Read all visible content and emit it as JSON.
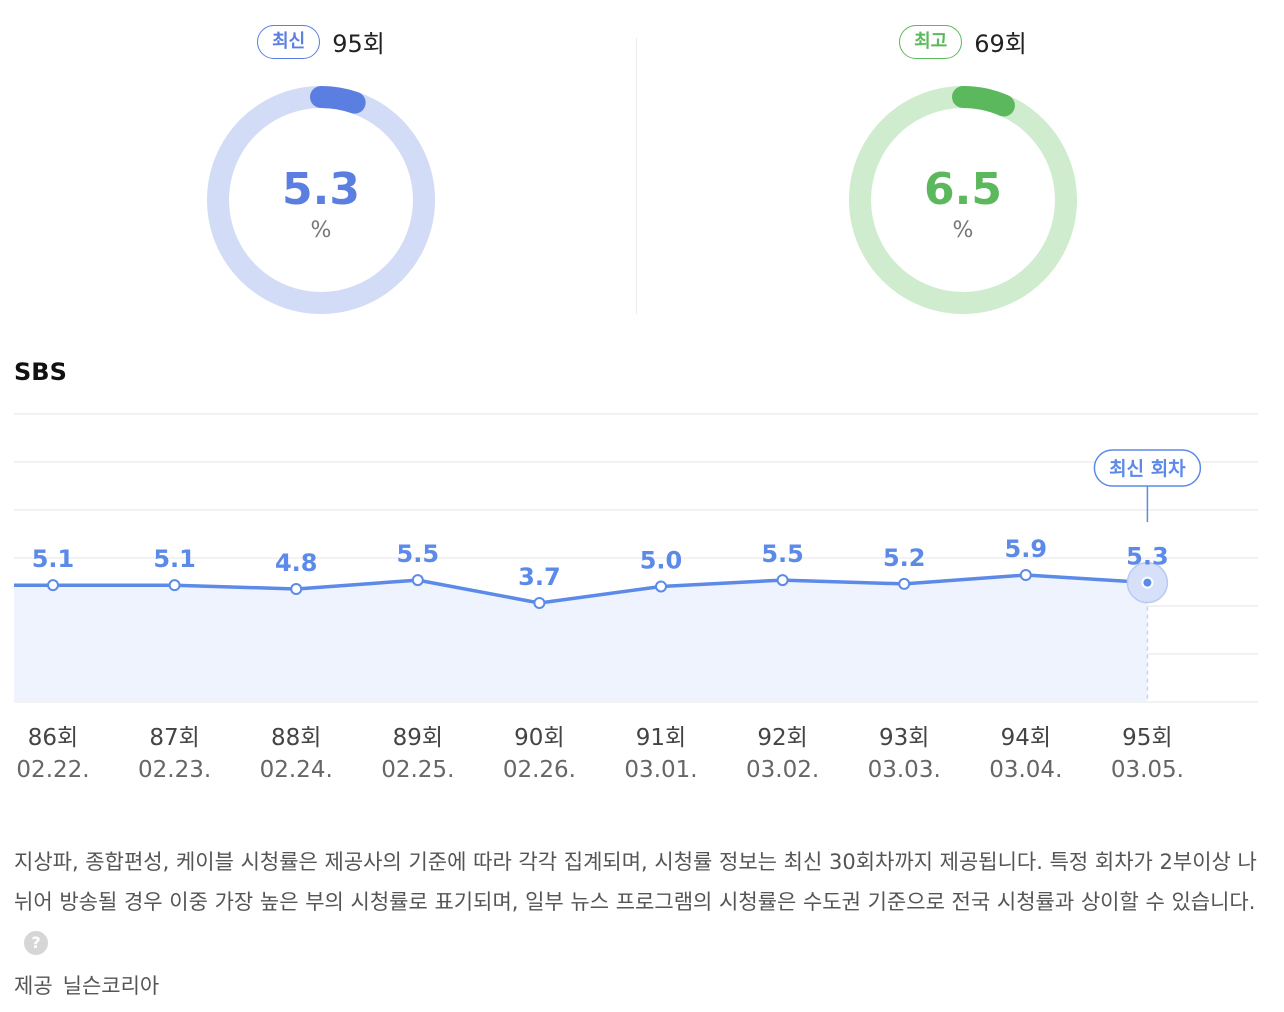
{
  "latest": {
    "badge": "최신",
    "episode": "95회",
    "value": "5.3",
    "unit": "%",
    "ratio": 0.053,
    "color": "#5b7fe0",
    "track_color": "#d3dcf6"
  },
  "best": {
    "badge": "최고",
    "episode": "69회",
    "value": "6.5",
    "unit": "%",
    "ratio": 0.065,
    "color": "#5cb85c",
    "track_color": "#cfeccf"
  },
  "chart_title": "SBS",
  "chart_data": {
    "type": "line",
    "categories": [
      "86회",
      "87회",
      "88회",
      "89회",
      "90회",
      "91회",
      "92회",
      "93회",
      "94회",
      "95회"
    ],
    "dates": [
      "02.22.",
      "02.23.",
      "02.24.",
      "02.25.",
      "02.26.",
      "03.01.",
      "03.02.",
      "03.03.",
      "03.04.",
      "03.05."
    ],
    "values": [
      5.1,
      5.1,
      4.8,
      5.5,
      3.7,
      5.0,
      5.5,
      5.2,
      5.9,
      5.3
    ],
    "labels": [
      "5.1",
      "5.1",
      "4.8",
      "5.5",
      "3.7",
      "5.0",
      "5.5",
      "5.2",
      "5.9",
      "5.3"
    ],
    "highlight_index": 9,
    "highlight_label": "최신 회차",
    "line_color": "#5b8ae8",
    "area_color": "#eef3fd",
    "grid": true
  },
  "description": "지상파, 종합편성, 케이블 시청률은 제공사의 기준에 따라 각각 집계되며, 시청률 정보는 최신 30회차까지 제공됩니다. 특정 회차가 2부이상 나뉘어 방송될 경우 이중 가장 높은 부의 시청률로 표기되며, 일부 뉴스 프로그램의 시청률은 수도권 기준으로 전국 시청률과 상이할 수 있습니다.",
  "help_icon": "?",
  "source_label": "제공",
  "source_name": "닐슨코리아"
}
